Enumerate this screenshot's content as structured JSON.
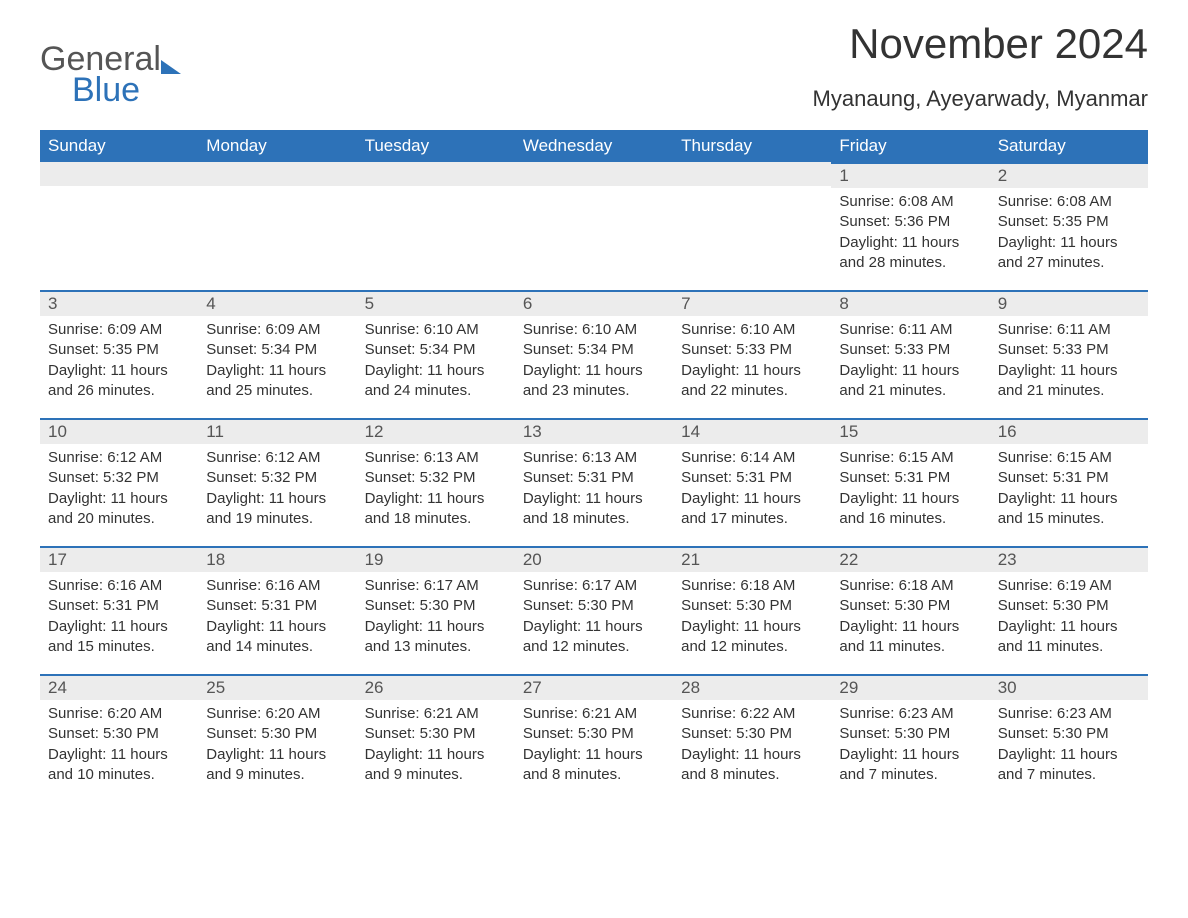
{
  "brand": {
    "general": "General",
    "blue": "Blue"
  },
  "colors": {
    "accent": "#2d72b8",
    "header_text": "#ffffff",
    "bg": "#ffffff",
    "daynum_bg": "#ececec",
    "text": "#333333"
  },
  "title": "November 2024",
  "location": "Myanaung, Ayeyarwady, Myanmar",
  "weekday_labels": [
    "Sunday",
    "Monday",
    "Tuesday",
    "Wednesday",
    "Thursday",
    "Friday",
    "Saturday"
  ],
  "weeks": [
    [
      null,
      null,
      null,
      null,
      null,
      {
        "n": "1",
        "sunrise": "6:08 AM",
        "sunset": "5:36 PM",
        "daylight_h": "11",
        "daylight_m": "28"
      },
      {
        "n": "2",
        "sunrise": "6:08 AM",
        "sunset": "5:35 PM",
        "daylight_h": "11",
        "daylight_m": "27"
      }
    ],
    [
      {
        "n": "3",
        "sunrise": "6:09 AM",
        "sunset": "5:35 PM",
        "daylight_h": "11",
        "daylight_m": "26"
      },
      {
        "n": "4",
        "sunrise": "6:09 AM",
        "sunset": "5:34 PM",
        "daylight_h": "11",
        "daylight_m": "25"
      },
      {
        "n": "5",
        "sunrise": "6:10 AM",
        "sunset": "5:34 PM",
        "daylight_h": "11",
        "daylight_m": "24"
      },
      {
        "n": "6",
        "sunrise": "6:10 AM",
        "sunset": "5:34 PM",
        "daylight_h": "11",
        "daylight_m": "23"
      },
      {
        "n": "7",
        "sunrise": "6:10 AM",
        "sunset": "5:33 PM",
        "daylight_h": "11",
        "daylight_m": "22"
      },
      {
        "n": "8",
        "sunrise": "6:11 AM",
        "sunset": "5:33 PM",
        "daylight_h": "11",
        "daylight_m": "21"
      },
      {
        "n": "9",
        "sunrise": "6:11 AM",
        "sunset": "5:33 PM",
        "daylight_h": "11",
        "daylight_m": "21"
      }
    ],
    [
      {
        "n": "10",
        "sunrise": "6:12 AM",
        "sunset": "5:32 PM",
        "daylight_h": "11",
        "daylight_m": "20"
      },
      {
        "n": "11",
        "sunrise": "6:12 AM",
        "sunset": "5:32 PM",
        "daylight_h": "11",
        "daylight_m": "19"
      },
      {
        "n": "12",
        "sunrise": "6:13 AM",
        "sunset": "5:32 PM",
        "daylight_h": "11",
        "daylight_m": "18"
      },
      {
        "n": "13",
        "sunrise": "6:13 AM",
        "sunset": "5:31 PM",
        "daylight_h": "11",
        "daylight_m": "18"
      },
      {
        "n": "14",
        "sunrise": "6:14 AM",
        "sunset": "5:31 PM",
        "daylight_h": "11",
        "daylight_m": "17"
      },
      {
        "n": "15",
        "sunrise": "6:15 AM",
        "sunset": "5:31 PM",
        "daylight_h": "11",
        "daylight_m": "16"
      },
      {
        "n": "16",
        "sunrise": "6:15 AM",
        "sunset": "5:31 PM",
        "daylight_h": "11",
        "daylight_m": "15"
      }
    ],
    [
      {
        "n": "17",
        "sunrise": "6:16 AM",
        "sunset": "5:31 PM",
        "daylight_h": "11",
        "daylight_m": "15"
      },
      {
        "n": "18",
        "sunrise": "6:16 AM",
        "sunset": "5:31 PM",
        "daylight_h": "11",
        "daylight_m": "14"
      },
      {
        "n": "19",
        "sunrise": "6:17 AM",
        "sunset": "5:30 PM",
        "daylight_h": "11",
        "daylight_m": "13"
      },
      {
        "n": "20",
        "sunrise": "6:17 AM",
        "sunset": "5:30 PM",
        "daylight_h": "11",
        "daylight_m": "12"
      },
      {
        "n": "21",
        "sunrise": "6:18 AM",
        "sunset": "5:30 PM",
        "daylight_h": "11",
        "daylight_m": "12"
      },
      {
        "n": "22",
        "sunrise": "6:18 AM",
        "sunset": "5:30 PM",
        "daylight_h": "11",
        "daylight_m": "11"
      },
      {
        "n": "23",
        "sunrise": "6:19 AM",
        "sunset": "5:30 PM",
        "daylight_h": "11",
        "daylight_m": "11"
      }
    ],
    [
      {
        "n": "24",
        "sunrise": "6:20 AM",
        "sunset": "5:30 PM",
        "daylight_h": "11",
        "daylight_m": "10"
      },
      {
        "n": "25",
        "sunrise": "6:20 AM",
        "sunset": "5:30 PM",
        "daylight_h": "11",
        "daylight_m": "9"
      },
      {
        "n": "26",
        "sunrise": "6:21 AM",
        "sunset": "5:30 PM",
        "daylight_h": "11",
        "daylight_m": "9"
      },
      {
        "n": "27",
        "sunrise": "6:21 AM",
        "sunset": "5:30 PM",
        "daylight_h": "11",
        "daylight_m": "8"
      },
      {
        "n": "28",
        "sunrise": "6:22 AM",
        "sunset": "5:30 PM",
        "daylight_h": "11",
        "daylight_m": "8"
      },
      {
        "n": "29",
        "sunrise": "6:23 AM",
        "sunset": "5:30 PM",
        "daylight_h": "11",
        "daylight_m": "7"
      },
      {
        "n": "30",
        "sunrise": "6:23 AM",
        "sunset": "5:30 PM",
        "daylight_h": "11",
        "daylight_m": "7"
      }
    ]
  ],
  "labels": {
    "sunrise": "Sunrise: ",
    "sunset": "Sunset: ",
    "daylight_prefix": "Daylight: ",
    "hours_word": " hours and ",
    "minutes_word": " minutes."
  }
}
